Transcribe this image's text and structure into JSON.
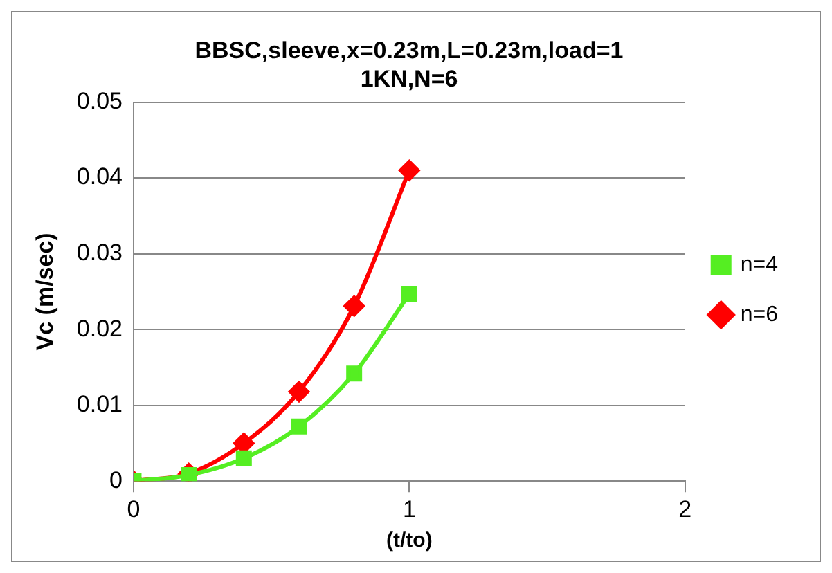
{
  "chart_data": {
    "type": "line",
    "title": "BBSC,sleeve,x=0.23m,L=0.23m,load=11KN,N=6",
    "xlabel": "(t/to)",
    "ylabel": "Vc (m/sec)",
    "x": [
      0,
      0.2,
      0.4,
      0.6,
      0.8,
      1
    ],
    "series": [
      {
        "name": "n=6",
        "color": "#ff0000",
        "marker": "diamond",
        "values": [
          0,
          0.001,
          0.005,
          0.0118,
          0.0231,
          0.041
        ]
      },
      {
        "name": "n=4",
        "color": "#55ee22",
        "marker": "square",
        "values": [
          0,
          0.0008,
          0.003,
          0.0072,
          0.0142,
          0.0247
        ]
      }
    ],
    "xlim": [
      0,
      2
    ],
    "xticks": [
      0,
      1,
      2
    ],
    "ylim": [
      0,
      0.05
    ],
    "yticks": [
      0,
      0.01,
      0.02,
      0.03,
      0.04,
      0.05
    ],
    "grid": "y",
    "legend": "right",
    "line_style": "solid"
  }
}
